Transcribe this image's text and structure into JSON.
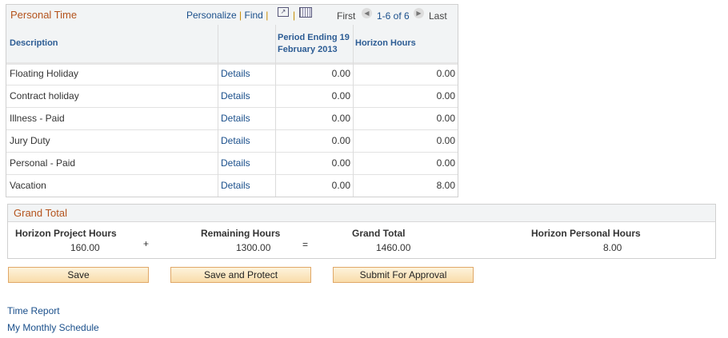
{
  "grid": {
    "title": "Personal Time",
    "personalize": "Personalize",
    "find": "Find",
    "sep": "|",
    "first": "First",
    "range": "1-6 of 6",
    "last": "Last",
    "columns": [
      "Description",
      "",
      "Period Ending 19 February 2013",
      "Horizon Hours"
    ],
    "rows": [
      {
        "description": "Floating Holiday",
        "link": "Details",
        "period": "0.00",
        "horizon": "0.00"
      },
      {
        "description": "Contract holiday",
        "link": "Details",
        "period": "0.00",
        "horizon": "0.00"
      },
      {
        "description": "Illness - Paid",
        "link": "Details",
        "period": "0.00",
        "horizon": "0.00"
      },
      {
        "description": "Jury Duty",
        "link": "Details",
        "period": "0.00",
        "horizon": "0.00"
      },
      {
        "description": "Personal - Paid",
        "link": "Details",
        "period": "0.00",
        "horizon": "0.00"
      },
      {
        "description": "Vacation",
        "link": "Details",
        "period": "0.00",
        "horizon": "8.00"
      }
    ]
  },
  "grand_total": {
    "title": "Grand Total",
    "project_label": "Horizon Project Hours",
    "project_value": "160.00",
    "plus": "+",
    "remaining_label": "Remaining Hours",
    "remaining_value": "1300.00",
    "equals": "=",
    "total_label": "Grand Total",
    "total_value": "1460.00",
    "personal_label": "Horizon Personal Hours",
    "personal_value": "8.00"
  },
  "buttons": {
    "save": "Save",
    "save_protect": "Save and Protect",
    "submit": "Submit For Approval"
  },
  "links": {
    "time_report": "Time Report",
    "monthly_schedule": "My Monthly Schedule"
  }
}
